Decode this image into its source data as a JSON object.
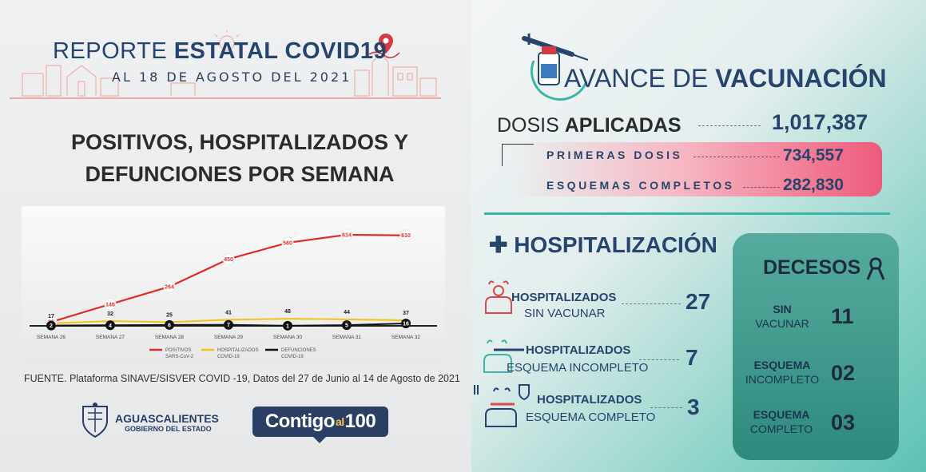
{
  "header": {
    "title_normal": "REPORTE ",
    "title_bold": "ESTATAL COVID19",
    "date": "AL 18 DE AGOSTO DEL 2021"
  },
  "heading": {
    "line1": "POSITIVOS, HOSPITALIZADOS Y",
    "line2": "DEFUNCIONES POR SEMANA"
  },
  "chart_data": {
    "type": "line",
    "categories": [
      "SEMANA 26",
      "SEMANA 27",
      "SEMANA 28",
      "SEMANA 29",
      "SEMANA 30",
      "SEMANA 31",
      "SEMANA 32"
    ],
    "series": [
      {
        "name": "POSITIVOS SARS-CoV-2",
        "color": "#e02b2b",
        "values": [
          26,
          146,
          264,
          450,
          560,
          614,
          610
        ]
      },
      {
        "name": "HOSPITALIZADOS COVID-19",
        "color": "#f2c21b",
        "values": [
          17,
          32,
          25,
          41,
          48,
          44,
          37
        ]
      },
      {
        "name": "DEFUNCIONES COVID-19",
        "color": "#111111",
        "values": [
          2,
          4,
          6,
          7,
          1,
          5,
          16
        ]
      }
    ],
    "ylim": [
      0,
      700
    ],
    "legend_position": "bottom",
    "grid": false
  },
  "source": "FUENTE. Plataforma SINAVE/SISVER COVID -19, Datos del 27 de Junio al 14 de Agosto de 2021",
  "footer": {
    "state_name": "AGUASCALIENTES",
    "state_sub": "GOBIERNO DEL ESTADO",
    "contigo": "Contigo",
    "contigo_al": "al",
    "contigo_num": "100"
  },
  "vacunacion": {
    "title_normal": "AVANCE DE ",
    "title_bold": "VACUNACIÓN",
    "dosis_normal": "DOSIS ",
    "dosis_bold": "APLICADAS",
    "dosis_total": "1,017,387",
    "primeras_label": "PRIMERAS DOSIS",
    "primeras_value": "734,557",
    "esquemas_label": "ESQUEMAS COMPLETOS",
    "esquemas_value": "282,830"
  },
  "hospitalizacion": {
    "title": "HOSPITALIZACIÓN",
    "rows": [
      {
        "line1": "HOSPITALIZADOS",
        "line2": "SIN VACUNAR",
        "value": "27"
      },
      {
        "line1": "HOSPITALIZADOS",
        "line2": "ESQUEMA INCOMPLETO",
        "value": "7"
      },
      {
        "line1": "HOSPITALIZADOS",
        "line2": "ESQUEMA COMPLETO",
        "value": "3"
      }
    ]
  },
  "decesos": {
    "title": "DECESOS",
    "rows": [
      {
        "line1": "SIN",
        "line2": "VACUNAR",
        "value": "11"
      },
      {
        "line1": "ESQUEMA",
        "line2": "INCOMPLETO",
        "value": "02"
      },
      {
        "line1": "ESQUEMA",
        "line2": "COMPLETO",
        "value": "03"
      }
    ]
  },
  "colors": {
    "navy": "#26446c",
    "teal": "#3bb6a7",
    "pink": "#ee5a7c",
    "red": "#e02b2b",
    "yellow": "#f2c21b"
  }
}
